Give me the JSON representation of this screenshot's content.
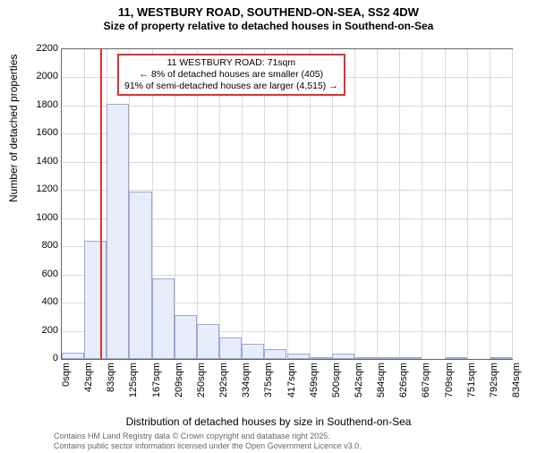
{
  "title_main": "11, WESTBURY ROAD, SOUTHEND-ON-SEA, SS2 4DW",
  "title_sub": "Size of property relative to detached houses in Southend-on-Sea",
  "y_label": "Number of detached properties",
  "x_label": "Distribution of detached houses by size in Southend-on-Sea",
  "attribution_1": "Contains HM Land Registry data © Crown copyright and database right 2025.",
  "attribution_2": "Contains public sector information licensed under the Open Government Licence v3.0.",
  "annotation": {
    "line1": "11 WESTBURY ROAD: 71sqm",
    "line2": "← 8% of detached houses are smaller (405)",
    "line3": "91% of semi-detached houses are larger (4,515) →"
  },
  "chart": {
    "type": "histogram",
    "y_min": 0,
    "y_max": 2200,
    "y_tick_step": 200,
    "y_ticks": [
      0,
      200,
      400,
      600,
      800,
      1000,
      1200,
      1400,
      1600,
      1800,
      2000,
      2200
    ],
    "x_bin_width_sqm": 41.6,
    "x_ticks": [
      "0sqm",
      "42sqm",
      "83sqm",
      "125sqm",
      "167sqm",
      "209sqm",
      "250sqm",
      "292sqm",
      "334sqm",
      "375sqm",
      "417sqm",
      "459sqm",
      "500sqm",
      "542sqm",
      "584sqm",
      "626sqm",
      "667sqm",
      "709sqm",
      "751sqm",
      "792sqm",
      "834sqm"
    ],
    "bars": [
      45,
      840,
      1810,
      1190,
      570,
      310,
      245,
      155,
      110,
      70,
      40,
      15,
      40,
      10,
      5,
      5,
      0,
      5,
      0,
      5
    ],
    "ref_line_sqm": 71,
    "bar_fill": "#e8ecfb",
    "bar_stroke": "#9aa8d9",
    "grid_color": "#d9d9d9",
    "ref_color": "#d33",
    "background_color": "#ffffff",
    "title_fontsize": 13,
    "label_fontsize": 12,
    "tick_fontsize": 11,
    "annotation_fontsize": 10.5
  }
}
